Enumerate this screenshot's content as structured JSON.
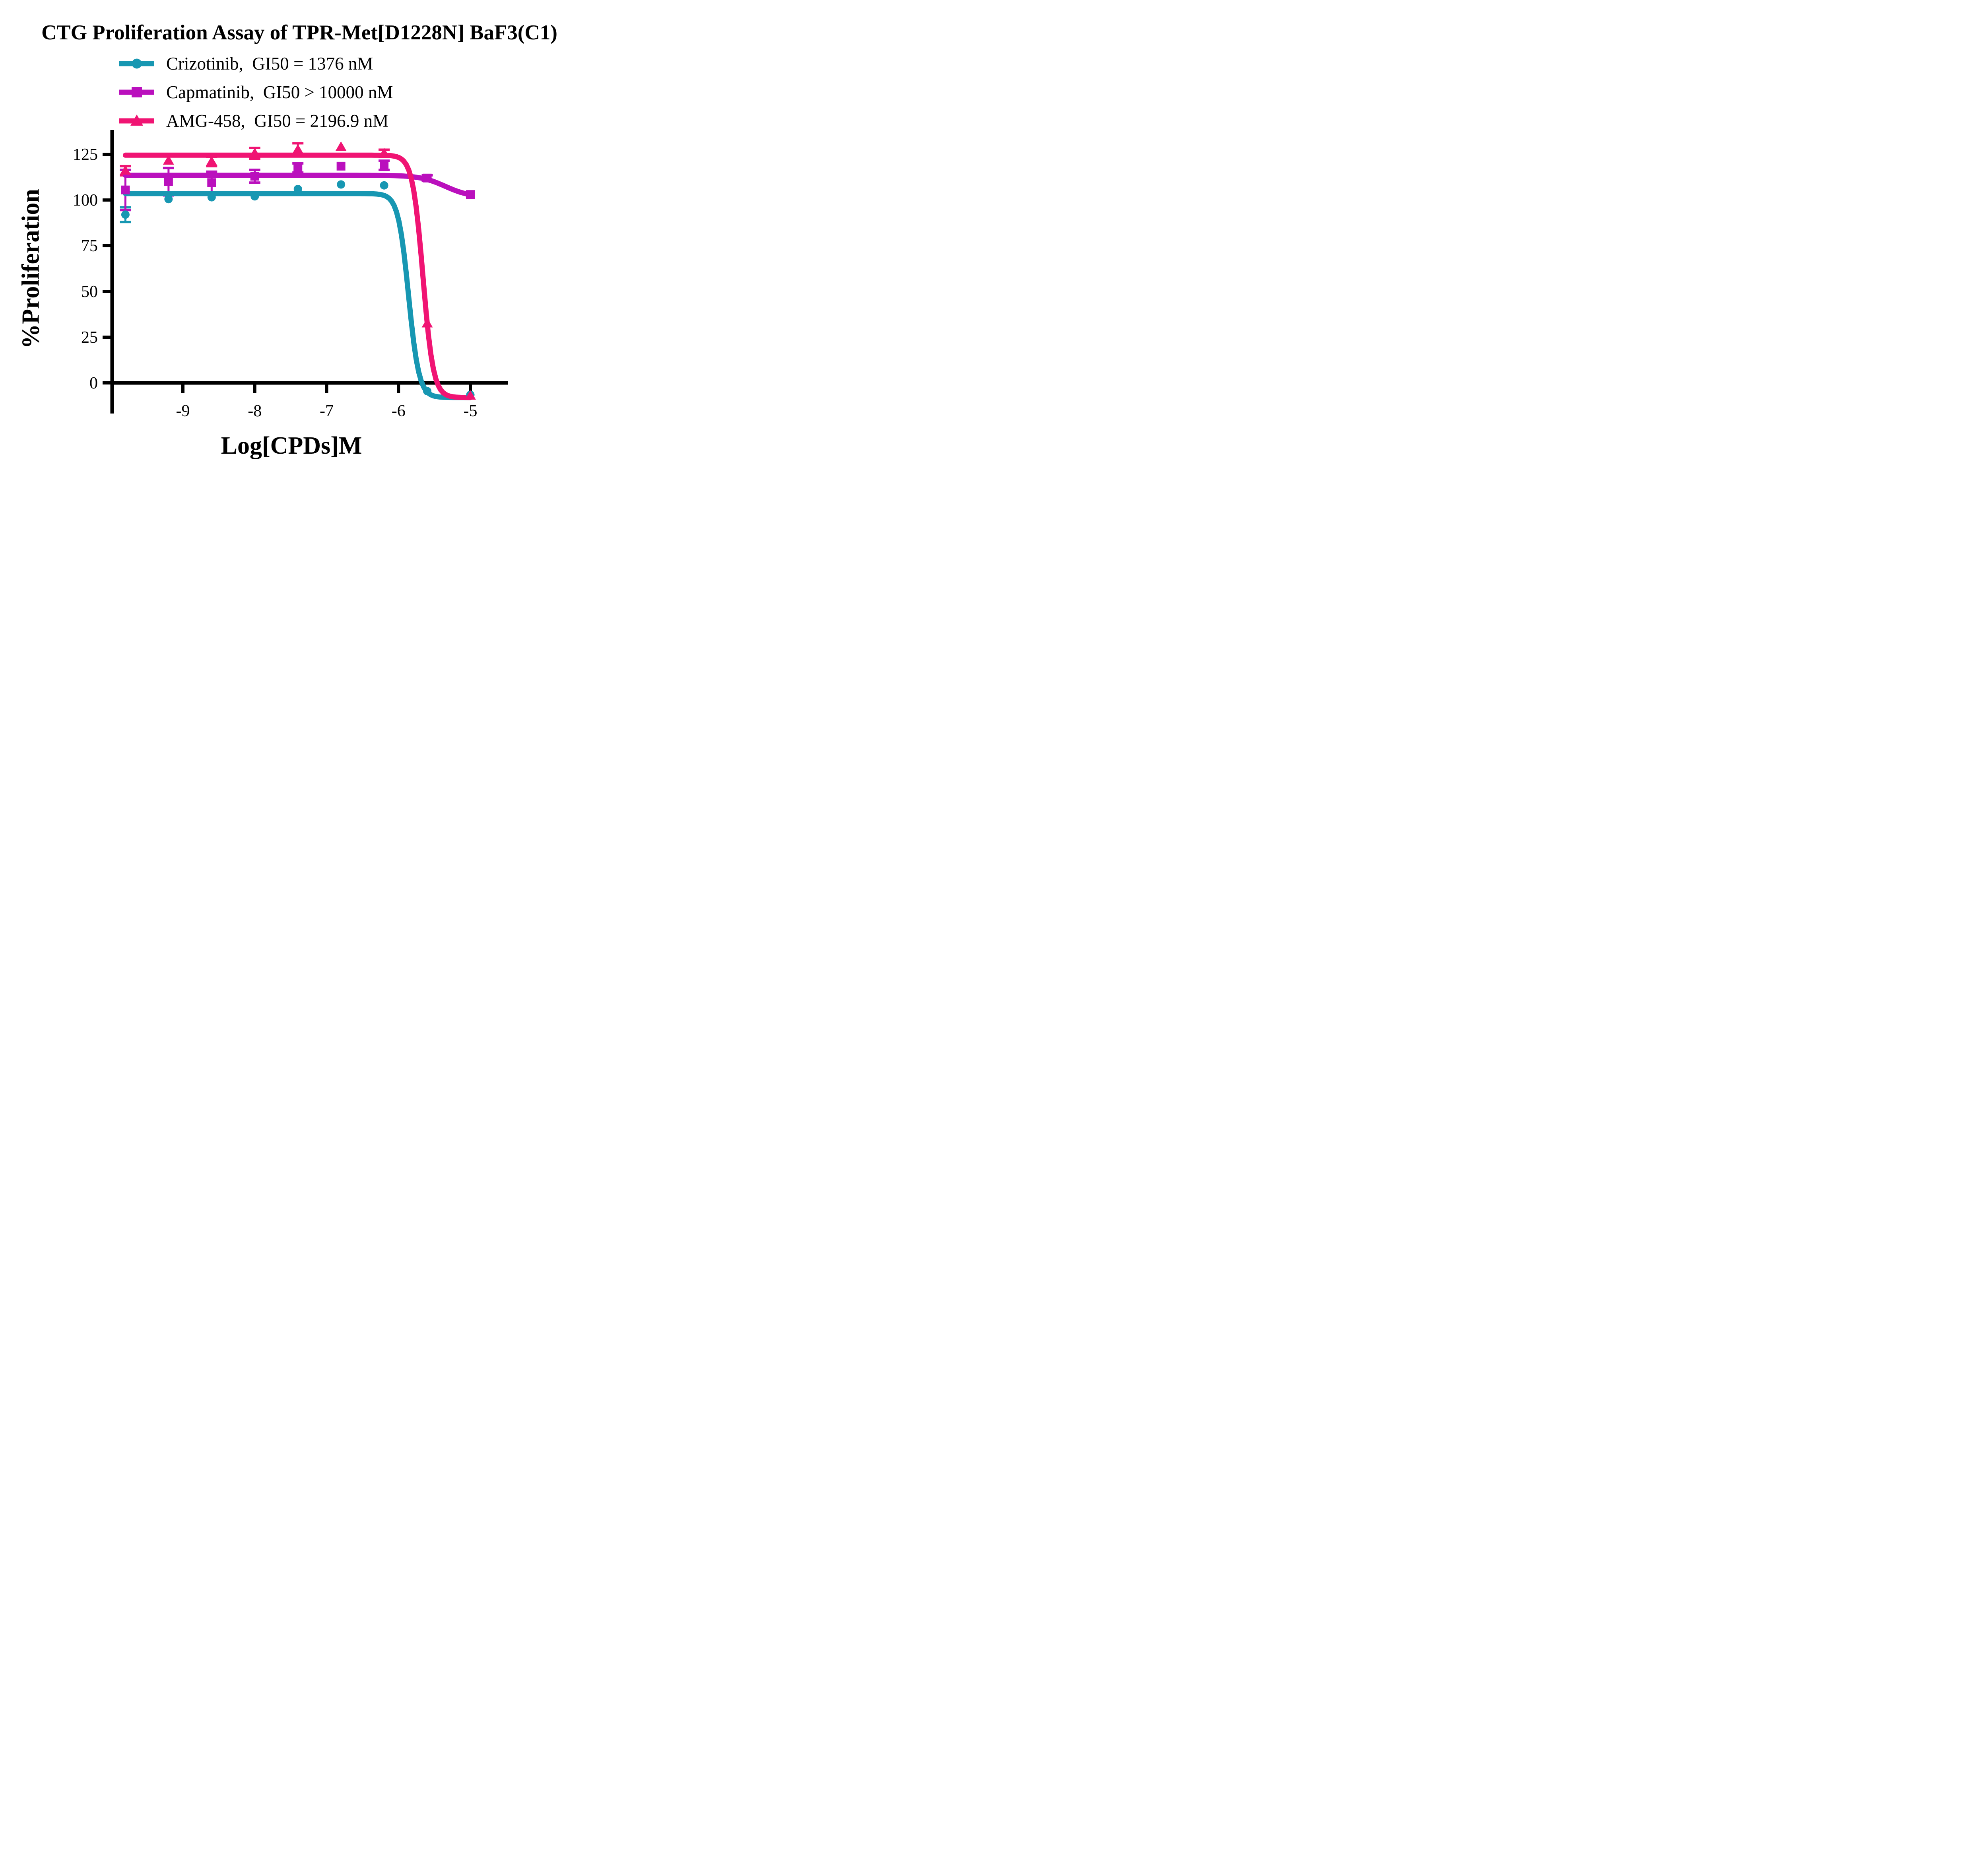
{
  "chart_data": {
    "type": "line",
    "title": "CTG Proliferation Assay of TPR-Met[D1228N] BaF3(C1)",
    "xlabel": "Log[CPDs]M",
    "ylabel": "%Proliferation",
    "grid": false,
    "legend_position": "top-left above plot",
    "xlim": [
      -10.0,
      -4.5
    ],
    "ylim": [
      -17,
      138
    ],
    "x_ticks": [
      -9,
      -8,
      -7,
      -6,
      -5
    ],
    "y_ticks": [
      0,
      25,
      50,
      75,
      100,
      125
    ],
    "x": [
      -9.8,
      -9.2,
      -8.6,
      -8.0,
      -7.4,
      -6.8,
      -6.2,
      -5.6,
      -5.0
    ],
    "series": [
      {
        "name": "Crizotinib",
        "label": "Crizotinib,  GI50 = 1376 nM",
        "gi50_text": "GI50 = 1376 nM",
        "color": "#1797B2",
        "marker": "circle",
        "values": [
          92,
          100.5,
          101.5,
          102,
          106,
          108.5,
          108,
          -4.5,
          -6.5
        ],
        "errors": [
          4,
          0,
          0,
          0,
          0,
          0,
          0,
          0,
          0
        ],
        "fit": {
          "top": 103.5,
          "bottom": -8,
          "logec50": -5.86,
          "hill": 6
        }
      },
      {
        "name": "Capmatinib",
        "label": "Capmatinib,  GI50 > 10000 nM",
        "gi50_text": "GI50 > 10000 nM",
        "color": "#BA10BD",
        "marker": "square",
        "values": [
          105.5,
          110,
          109.5,
          113,
          117.5,
          118.5,
          119,
          112,
          103
        ],
        "errors": [
          11,
          7.5,
          6,
          3.5,
          2.5,
          0,
          2.5,
          1.5,
          0
        ],
        "fit": {
          "top": 113.5,
          "bottom": 101.5,
          "logec50": -5.35,
          "hill": 2.5
        }
      },
      {
        "name": "AMG-458",
        "label": "AMG-458,  GI50 = 2196.9 nM",
        "gi50_text": "GI50 = 2196.9 nM",
        "color": "#F01473",
        "marker": "triangle",
        "values": [
          116,
          121.5,
          121,
          125.5,
          127.5,
          129,
          125.5,
          32.5,
          -7
        ],
        "errors": [
          2.5,
          0,
          2.5,
          3,
          3.5,
          0,
          2,
          0,
          0
        ],
        "fit": {
          "top": 124.5,
          "bottom": -8,
          "logec50": -5.66,
          "hill": 6
        }
      }
    ]
  }
}
